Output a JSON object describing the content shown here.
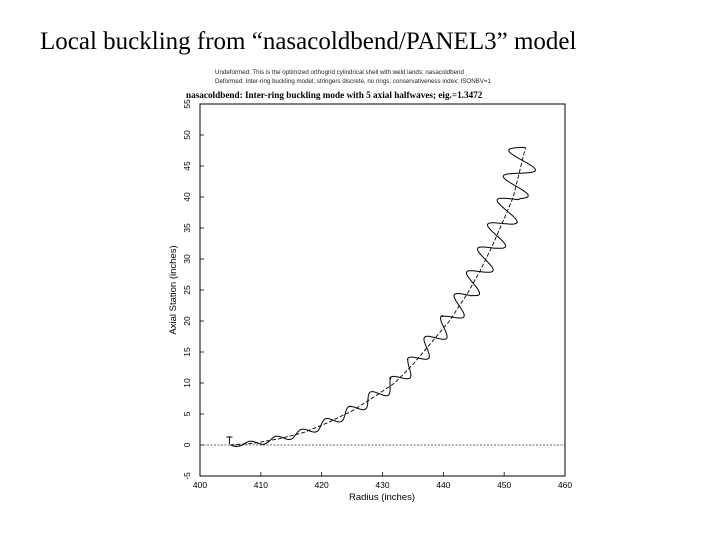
{
  "slide": {
    "title": "Local buckling from “nasacoldbend/PANEL3” model"
  },
  "chart_data": {
    "type": "line",
    "header_lines": [
      "Undeformed: This is the optimized orthogrid cylindrical shell with weld lands: nasacoldbend",
      "Deformed: Inter-ring buckling model; stringers discrete, no rings; conservativeness index; ISONBV=1"
    ],
    "title": "nasacoldbend: Inter-ring buckling mode with 5 axial halfwaves; eig.=1.3472",
    "xlabel": "Radius (inches)",
    "ylabel": "Axial Station (inches)",
    "xlim": [
      400,
      460
    ],
    "ylim": [
      -5,
      55
    ],
    "xticks": [
      400,
      410,
      420,
      430,
      440,
      450,
      460
    ],
    "yticks": [
      -5,
      0,
      5,
      10,
      15,
      20,
      25,
      30,
      35,
      40,
      45,
      50,
      55
    ],
    "baseline_y": 0,
    "series": [
      {
        "role": "undeformed",
        "x": [
          405,
          409,
          413,
          417,
          421,
          425,
          429,
          432,
          435,
          438,
          441,
          444,
          446,
          448,
          450,
          451.5,
          452.5,
          453.5
        ],
        "y": [
          0,
          0.3,
          1,
          2,
          3.6,
          5.5,
          8,
          10,
          13,
          16.5,
          20,
          24.5,
          28,
          32,
          36.5,
          40,
          44,
          48
        ]
      }
    ],
    "mode_shape": {
      "description_values": "buckled profile oscillating about the undeformed shell",
      "amplitude_start": 0.3,
      "amplitude_end": 2.6,
      "cycles": 17
    },
    "colors": {
      "line": "#000000",
      "baseline": "#333333"
    }
  }
}
